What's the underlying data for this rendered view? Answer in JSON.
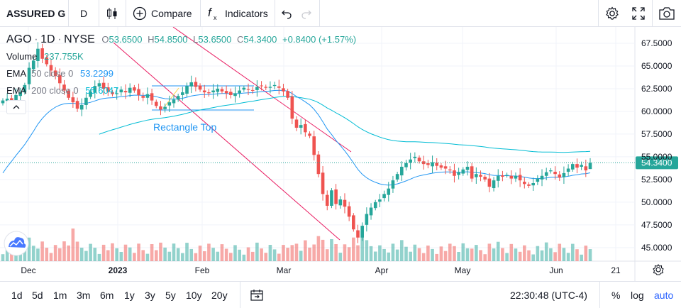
{
  "toolbar": {
    "symbol": "ASSURED G",
    "interval": "D",
    "compare_label": "Compare",
    "indicators_label": "Indicators",
    "icons": [
      "candles-icon",
      "plus-circle-icon",
      "fx-icon",
      "undo-icon",
      "redo-icon",
      "settings-icon",
      "fullscreen-icon",
      "camera-icon"
    ]
  },
  "legend": {
    "ticker": "AGO",
    "interval": "1D",
    "exchange": "NYSE",
    "o_label": "O",
    "o_value": "53.6500",
    "h_label": "H",
    "h_value": "54.8500",
    "l_label": "L",
    "l_value": "53.6500",
    "c_label": "C",
    "c_value": "54.3400",
    "change": "+0.8400 (+1.57%)",
    "volume_label": "Volume",
    "volume_value": "237.755K",
    "ema50_label": "EMA",
    "ema50_params": "50 close 0",
    "ema50_value": "53.2299",
    "ema200_label": "EMA",
    "ema200_params": "200 close 0",
    "ema200_value": "55.6047"
  },
  "drawing_label": "Rectangle Top",
  "price_axis": {
    "ticks": [
      "67.5000",
      "65.0000",
      "62.5000",
      "60.0000",
      "57.5000",
      "55.0000",
      "52.5000",
      "50.0000",
      "47.5000",
      "45.0000"
    ],
    "last_price": "54.3400"
  },
  "time_axis": {
    "labels": [
      "Dec",
      "2023",
      "Feb",
      "Mar",
      "Apr",
      "May",
      "Jun",
      "21"
    ]
  },
  "bottom": {
    "ranges": [
      "1d",
      "5d",
      "1m",
      "3m",
      "6m",
      "1y",
      "3y",
      "5y",
      "10y",
      "20y"
    ],
    "time": "22:30:48 (UTC-4)",
    "percent_label": "%",
    "log_label": "log",
    "auto_label": "auto"
  },
  "colors": {
    "up": "#26a69a",
    "down": "#ef5350",
    "ema50": "#2196f3",
    "ema200": "#00bcd4",
    "trend": "#e91e63",
    "rect": "#2196f3",
    "accent": "#2962ff"
  },
  "chart_data": {
    "type": "candlestick",
    "y_range": [
      43.5,
      69.3
    ],
    "x_labels": [
      "Dec",
      "2023",
      "Feb",
      "Mar",
      "Apr",
      "May",
      "Jun",
      "21"
    ],
    "last_bar": {
      "open": 53.65,
      "high": 54.85,
      "low": 53.65,
      "close": 54.34
    },
    "ema50_last": 53.2299,
    "ema200_last": 55.6047,
    "volume_last": "237.755K",
    "closes": [
      61.2,
      61.4,
      60.9,
      61.8,
      62.1,
      62.9,
      64.8,
      65.6,
      66.9,
      65.8,
      65.2,
      64.5,
      63.9,
      63.1,
      62.3,
      61.5,
      61.0,
      60.3,
      60.7,
      61.5,
      62.2,
      62.8,
      63.1,
      62.5,
      62.2,
      61.9,
      62.0,
      62.4,
      62.1,
      62.6,
      62.3,
      61.8,
      61.5,
      61.9,
      61.2,
      60.6,
      60.2,
      60.5,
      61.0,
      61.3,
      61.7,
      62.1,
      62.8,
      63.2,
      62.7,
      62.4,
      62.1,
      62.0,
      62.3,
      62.5,
      62.2,
      62.0,
      61.8,
      62.0,
      62.3,
      62.6,
      62.4,
      62.3,
      62.7,
      62.8,
      62.6,
      62.7,
      62.9,
      62.6,
      62.2,
      61.5,
      59.2,
      58.2,
      58.5,
      57.7,
      57.3,
      55.2,
      53.1,
      50.9,
      49.6,
      51.3,
      49.8,
      50.3,
      49.5,
      48.4,
      47.0,
      46.1,
      47.4,
      48.7,
      49.4,
      50.0,
      50.3,
      50.9,
      51.5,
      52.4,
      53.1,
      53.9,
      54.3,
      54.7,
      55.0,
      54.5,
      54.2,
      54.1,
      54.4,
      54.0,
      53.8,
      53.7,
      53.5,
      52.9,
      53.3,
      53.6,
      53.9,
      52.6,
      53.1,
      52.8,
      52.5,
      51.7,
      52.4,
      52.9,
      52.8,
      53.0,
      52.6,
      52.9,
      52.4,
      52.0,
      51.8,
      52.1,
      52.6,
      52.9,
      53.3,
      53.5,
      53.1,
      52.7,
      53.2,
      53.7,
      54.2,
      53.8,
      54.1,
      53.5,
      54.34
    ]
  }
}
